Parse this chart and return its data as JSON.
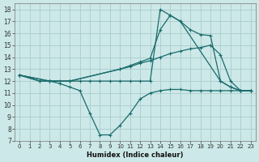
{
  "xlabel": "Humidex (Indice chaleur)",
  "xlim": [
    -0.5,
    23.5
  ],
  "ylim": [
    7,
    18.5
  ],
  "xticks": [
    0,
    1,
    2,
    3,
    4,
    5,
    6,
    7,
    8,
    9,
    10,
    11,
    12,
    13,
    14,
    15,
    16,
    17,
    18,
    19,
    20,
    21,
    22,
    23
  ],
  "yticks": [
    7,
    8,
    9,
    10,
    11,
    12,
    13,
    14,
    15,
    16,
    17,
    18
  ],
  "bg_color": "#cce8e8",
  "grid_color": "#aacccc",
  "line_color": "#1a6b6b",
  "lineA_x": [
    0,
    2,
    3,
    4,
    5,
    6,
    7,
    8,
    9,
    10,
    11,
    12,
    13,
    14,
    15,
    16,
    20,
    21,
    22,
    23
  ],
  "lineA_y": [
    12.5,
    12.0,
    12.0,
    12.0,
    12.0,
    12.0,
    12.0,
    12.0,
    12.0,
    12.0,
    12.0,
    12.0,
    12.0,
    18.0,
    17.5,
    17.0,
    12.0,
    11.5,
    11.2,
    11.2
  ],
  "lineB_x": [
    0,
    3,
    5,
    10,
    11,
    12,
    13,
    14,
    15,
    16,
    17,
    18,
    19,
    20,
    21,
    22,
    23
  ],
  "lineB_y": [
    12.5,
    12.0,
    12.0,
    13.0,
    13.3,
    13.6,
    13.9,
    16.3,
    17.5,
    17.0,
    16.3,
    15.9,
    15.8,
    12.0,
    11.5,
    11.2,
    11.2
  ],
  "lineC_x": [
    0,
    3,
    5,
    10,
    11,
    12,
    13,
    14,
    15,
    16,
    17,
    18,
    19,
    20,
    21,
    22,
    23
  ],
  "lineC_y": [
    12.5,
    12.0,
    12.0,
    13.0,
    13.2,
    13.5,
    13.7,
    14.0,
    14.3,
    14.5,
    14.7,
    14.8,
    15.0,
    14.2,
    12.0,
    11.2,
    11.2
  ],
  "lineD_x": [
    0,
    2,
    3,
    4,
    5,
    6,
    7,
    8,
    9,
    10,
    11,
    12,
    13,
    14,
    15,
    16,
    17,
    18,
    19,
    20,
    21,
    22,
    23
  ],
  "lineD_y": [
    12.5,
    12.0,
    12.0,
    11.8,
    11.5,
    11.2,
    9.3,
    7.5,
    7.5,
    8.3,
    9.3,
    10.5,
    11.0,
    11.2,
    11.3,
    11.3,
    11.2,
    11.2,
    11.2,
    11.2,
    11.2,
    11.2,
    11.2
  ]
}
